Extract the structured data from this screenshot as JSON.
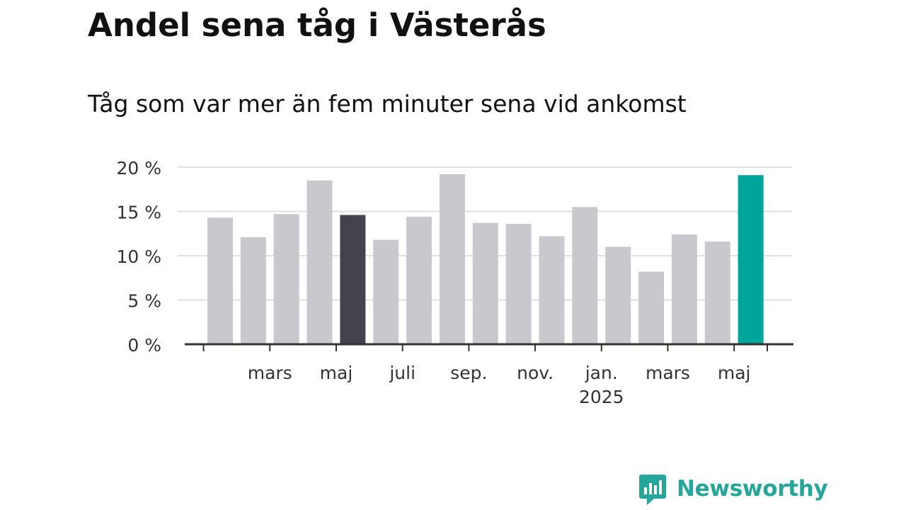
{
  "title": "Andel sena tåg i Västerås",
  "subtitle": "Tåg som var mer än fem minuter sena vid ankomst",
  "brand": {
    "name": "Newsworthy",
    "color": "#26a69a",
    "icon": "bar-chart-speech-bubble-icon"
  },
  "chart_data": {
    "type": "bar",
    "title": "Andel sena tåg i Västerås",
    "subtitle": "Tåg som var mer än fem minuter sena vid ankomst",
    "xlabel": "",
    "ylabel": "",
    "ylim": [
      0,
      20
    ],
    "y_ticks": [
      0,
      5,
      10,
      15,
      20
    ],
    "y_tick_labels": [
      "0 %",
      "5 %",
      "10 %",
      "15 %",
      "20 %"
    ],
    "grid": true,
    "legend": "none",
    "x_tick_labels": [
      {
        "after_bar": 1,
        "label": "mars"
      },
      {
        "after_bar": 3,
        "label": "maj"
      },
      {
        "after_bar": 5,
        "label": "juli"
      },
      {
        "after_bar": 7,
        "label": "sep."
      },
      {
        "after_bar": 9,
        "label": "nov."
      },
      {
        "after_bar": 11,
        "label": "jan.",
        "sublabel": "2025"
      },
      {
        "after_bar": 13,
        "label": "mars"
      },
      {
        "after_bar": 15,
        "label": "maj"
      }
    ],
    "series": [
      {
        "values": [
          14.3,
          12.1,
          14.7,
          18.5,
          14.6,
          11.8,
          14.4,
          19.2,
          13.7,
          13.6,
          12.2,
          15.5,
          11.0,
          8.2,
          12.4,
          11.6,
          19.1
        ]
      }
    ],
    "colors": {
      "default": "#c9c8cf",
      "highlight_dark": "#43424d",
      "highlight_latest": "#00a599",
      "axis": "#333333",
      "grid": "#e0e0e0",
      "text": "#333333"
    },
    "highlight": [
      {
        "index": 4,
        "color_key": "highlight_dark"
      },
      {
        "index": 16,
        "color_key": "highlight_latest"
      }
    ]
  }
}
